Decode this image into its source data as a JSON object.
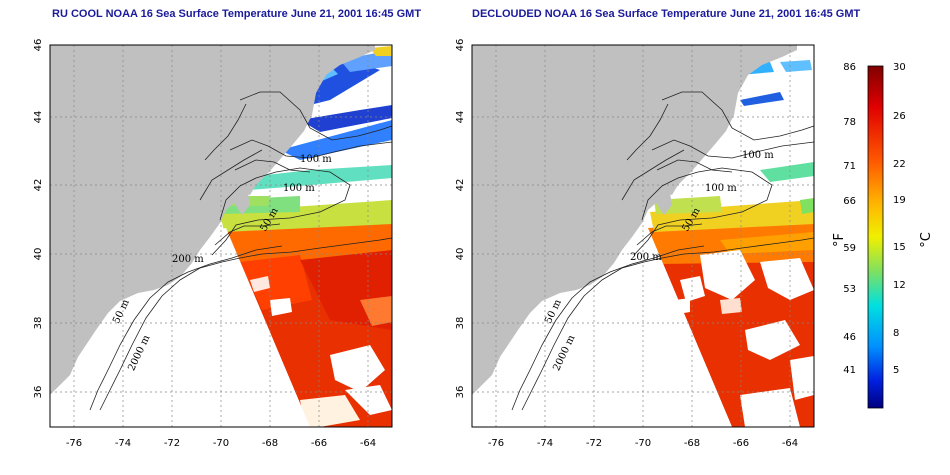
{
  "panels": [
    {
      "title": "RU COOL NOAA 16 Sea Surface Temperature June 21, 2001 16:45 GMT",
      "variant": "raw"
    },
    {
      "title": "DECLOUDED NOAA 16 Sea Surface Temperature June 21, 2001 16:45 GMT",
      "variant": "declouded"
    }
  ],
  "axes": {
    "x_ticks": [
      "-76",
      "-74",
      "-72",
      "-70",
      "-68",
      "-66",
      "-64"
    ],
    "y_ticks": [
      "46",
      "44",
      "42",
      "40",
      "38",
      "36"
    ]
  },
  "contour_labels": {
    "m100": "100 m",
    "m100b": "100 m",
    "m50": "50 m",
    "m200": "200 m",
    "m50b": "50 m",
    "m2000": "2000 m"
  },
  "colorbar": {
    "fahrenheit_ticks": [
      "86",
      "78",
      "71",
      "66",
      "59",
      "53",
      "46",
      "41"
    ],
    "celsius_ticks": [
      "30",
      "26",
      "22",
      "19",
      "15",
      "12",
      "8",
      "5"
    ],
    "fahrenheit_unit": "°F",
    "celsius_unit": "°C"
  },
  "colors": {
    "land": "#c0c0c0",
    "title": "#1a1a9a"
  }
}
